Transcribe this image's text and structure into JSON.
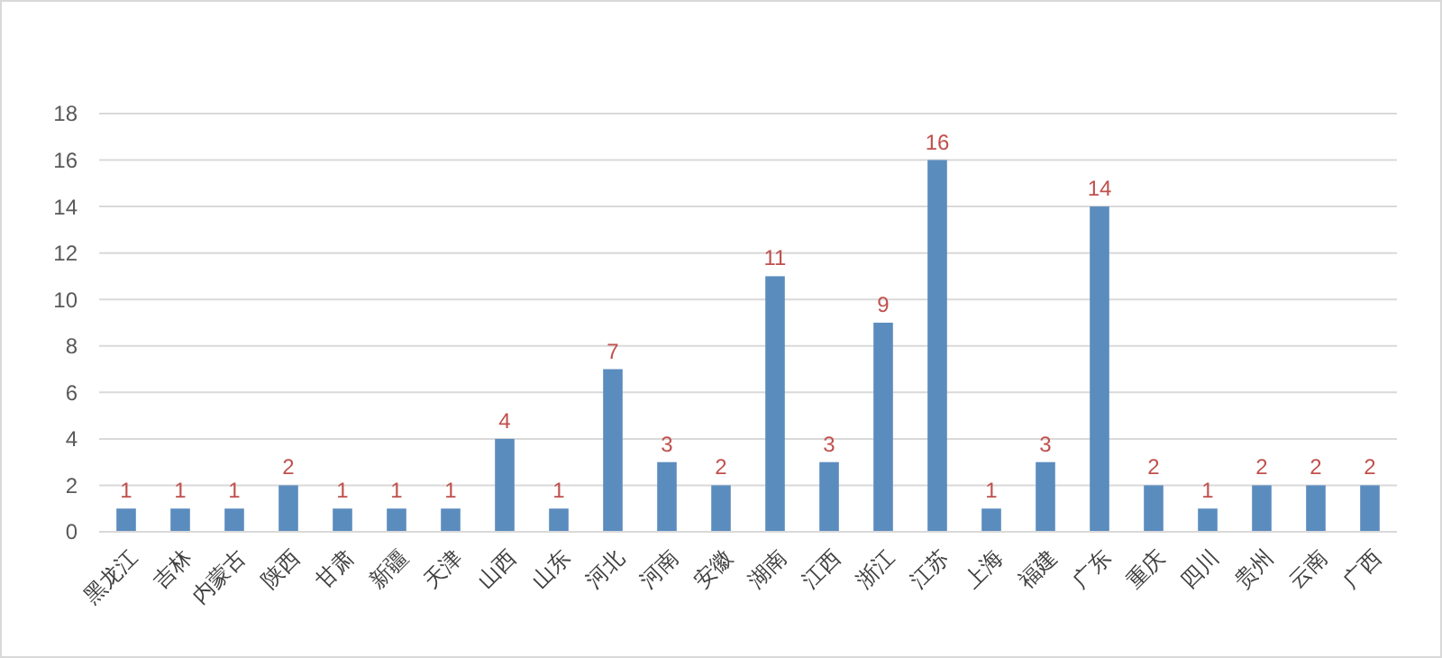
{
  "chart_data": {
    "type": "bar",
    "categories": [
      "黑龙江",
      "吉林",
      "内蒙古",
      "陕西",
      "甘肃",
      "新疆",
      "天津",
      "山西",
      "山东",
      "河北",
      "河南",
      "安徽",
      "湖南",
      "江西",
      "浙江",
      "江苏",
      "上海",
      "福建",
      "广东",
      "重庆",
      "四川",
      "贵州",
      "云南",
      "广西"
    ],
    "values": [
      1,
      1,
      1,
      2,
      1,
      1,
      1,
      4,
      1,
      7,
      3,
      2,
      11,
      3,
      9,
      16,
      1,
      3,
      14,
      2,
      1,
      2,
      2,
      2
    ],
    "color": "#5b8cbe",
    "ylim": [
      0,
      18
    ],
    "yticks": [
      0,
      2,
      4,
      6,
      8,
      10,
      12,
      14,
      16,
      18
    ],
    "grid": "y",
    "data_labels": true
  }
}
